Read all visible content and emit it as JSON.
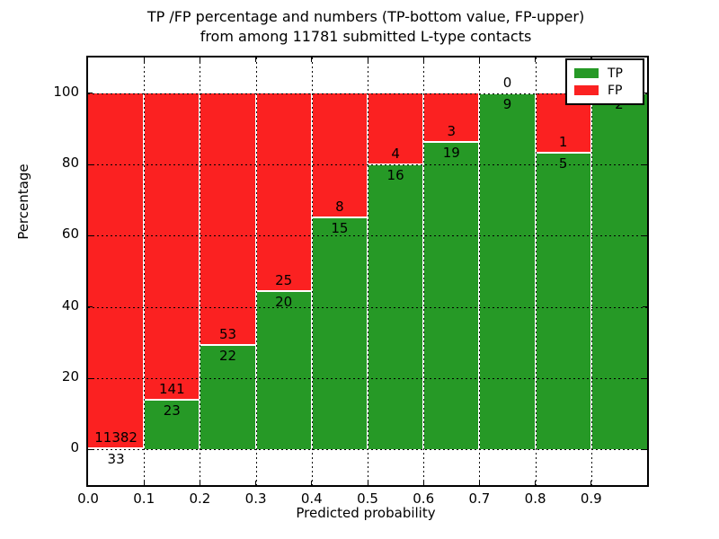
{
  "title": {
    "line1": "TP /FP percentage and numbers (TP-bottom value, FP-upper)",
    "line2": "from among 11781 submitted L-type contacts"
  },
  "chart_data": {
    "type": "bar",
    "stacked": true,
    "normalized_to_percent": true,
    "title": "TP /FP percentage and numbers (TP-bottom value, FP-upper) from among 11781 submitted L-type contacts",
    "xlabel": "Predicted probability",
    "ylabel": "Percentage",
    "categories": [
      "0.0-0.1",
      "0.1-0.2",
      "0.2-0.3",
      "0.3-0.4",
      "0.4-0.5",
      "0.5-0.6",
      "0.6-0.7",
      "0.7-0.8",
      "0.8-0.9",
      "0.9-1.0"
    ],
    "series": [
      {
        "name": "TP",
        "color": "#269926",
        "values": [
          33,
          23,
          22,
          20,
          15,
          16,
          19,
          9,
          5,
          2
        ]
      },
      {
        "name": "FP",
        "color": "#fb2121",
        "values": [
          11382,
          141,
          53,
          25,
          8,
          4,
          3,
          0,
          1,
          0
        ]
      }
    ],
    "tp_percent": [
      0.29,
      14.02,
      29.33,
      44.44,
      65.22,
      80.0,
      86.36,
      100.0,
      83.33,
      100.0
    ],
    "x_ticks": [
      "0.0",
      "0.1",
      "0.2",
      "0.3",
      "0.4",
      "0.5",
      "0.6",
      "0.7",
      "0.8",
      "0.9"
    ],
    "y_ticks": [
      0,
      20,
      40,
      60,
      80,
      100
    ],
    "xlim": [
      0.0,
      1.0
    ],
    "ylim": [
      -10,
      110
    ],
    "grid": "dotted black, horizontal and vertical",
    "bar_edge_color": "#ffffff",
    "legend": {
      "position": "upper right",
      "entries": [
        {
          "label": "TP",
          "color": "#269926"
        },
        {
          "label": "FP",
          "color": "#fb2121"
        }
      ]
    }
  }
}
